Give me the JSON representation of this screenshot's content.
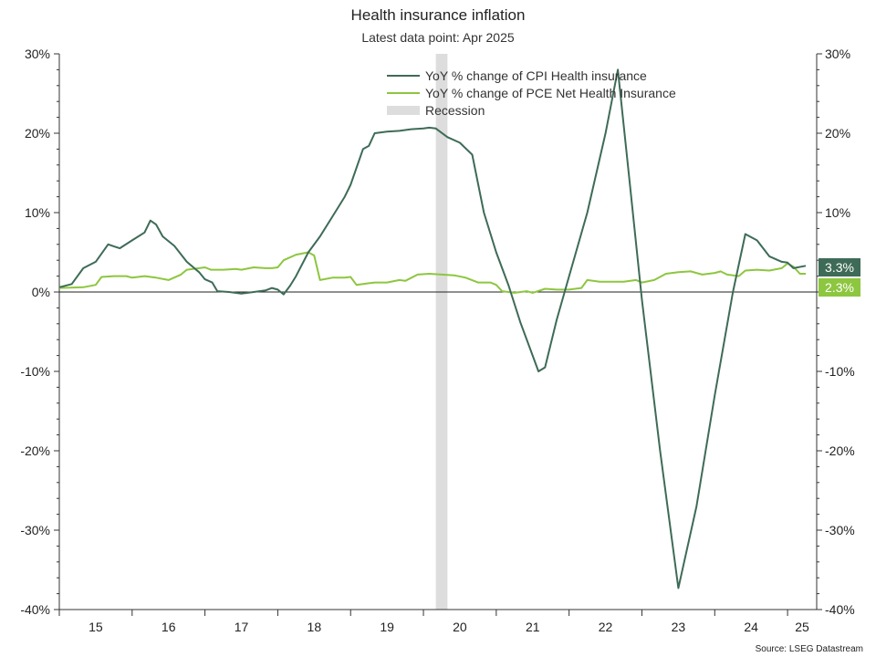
{
  "chart_data": {
    "type": "line",
    "title": "Health insurance inflation",
    "subtitle": "Latest data point: Apr 2025",
    "source": "Source: LSEG Datastream",
    "ylim": [
      -40,
      30
    ],
    "yticks": [
      30,
      20,
      10,
      0,
      -10,
      -20,
      -30,
      -40
    ],
    "ytick_labels": [
      "30%",
      "20%",
      "10%",
      "0%",
      "-10%",
      "-20%",
      "-30%",
      "-40%"
    ],
    "xlim": [
      2015.0,
      2025.4
    ],
    "x_year_labels": [
      "15",
      "16",
      "17",
      "18",
      "19",
      "20",
      "21",
      "22",
      "23",
      "24",
      "25"
    ],
    "grid": false,
    "legend_placement": "top-center",
    "recession": {
      "label": "Recession",
      "start": 2020.17,
      "end": 2020.33,
      "color": "#dddddd"
    },
    "series": [
      {
        "name": "YoY % change of CPI Health insurance",
        "color": "#3e6b57",
        "last_label": "3.3%",
        "points": [
          [
            2015.0,
            0.6
          ],
          [
            2015.17,
            1.0
          ],
          [
            2015.33,
            3.0
          ],
          [
            2015.5,
            3.8
          ],
          [
            2015.67,
            6.0
          ],
          [
            2015.83,
            5.5
          ],
          [
            2016.0,
            6.5
          ],
          [
            2016.17,
            7.5
          ],
          [
            2016.25,
            9.0
          ],
          [
            2016.33,
            8.5
          ],
          [
            2016.42,
            7.0
          ],
          [
            2016.58,
            5.8
          ],
          [
            2016.75,
            3.8
          ],
          [
            2016.92,
            2.5
          ],
          [
            2017.0,
            1.6
          ],
          [
            2017.1,
            1.2
          ],
          [
            2017.17,
            0.1
          ],
          [
            2017.33,
            0.0
          ],
          [
            2017.5,
            -0.2
          ],
          [
            2017.67,
            0.0
          ],
          [
            2017.83,
            0.2
          ],
          [
            2017.92,
            0.5
          ],
          [
            2018.0,
            0.3
          ],
          [
            2018.08,
            -0.3
          ],
          [
            2018.17,
            0.8
          ],
          [
            2018.25,
            2.0
          ],
          [
            2018.42,
            5.0
          ],
          [
            2018.58,
            7.0
          ],
          [
            2018.75,
            9.5
          ],
          [
            2018.92,
            12.0
          ],
          [
            2019.0,
            13.5
          ],
          [
            2019.17,
            18.0
          ],
          [
            2019.25,
            18.4
          ],
          [
            2019.33,
            20.0
          ],
          [
            2019.5,
            20.2
          ],
          [
            2019.67,
            20.3
          ],
          [
            2019.83,
            20.5
          ],
          [
            2020.0,
            20.6
          ],
          [
            2020.08,
            20.7
          ],
          [
            2020.17,
            20.6
          ],
          [
            2020.33,
            19.5
          ],
          [
            2020.5,
            18.8
          ],
          [
            2020.67,
            17.3
          ],
          [
            2020.83,
            10.0
          ],
          [
            2021.0,
            5.0
          ],
          [
            2021.17,
            0.8
          ],
          [
            2021.33,
            -3.8
          ],
          [
            2021.5,
            -8.0
          ],
          [
            2021.58,
            -10.0
          ],
          [
            2021.67,
            -9.5
          ],
          [
            2021.83,
            -3.5
          ],
          [
            2022.0,
            2.0
          ],
          [
            2022.25,
            10.0
          ],
          [
            2022.5,
            20.0
          ],
          [
            2022.67,
            28.0
          ],
          [
            2022.83,
            14.0
          ],
          [
            2023.0,
            -1.0
          ],
          [
            2023.25,
            -20.0
          ],
          [
            2023.5,
            -37.3
          ],
          [
            2023.75,
            -27.0
          ],
          [
            2024.0,
            -13.0
          ],
          [
            2024.25,
            0.0
          ],
          [
            2024.42,
            7.3
          ],
          [
            2024.58,
            6.5
          ],
          [
            2024.75,
            4.5
          ],
          [
            2024.92,
            3.8
          ],
          [
            2025.0,
            3.7
          ],
          [
            2025.08,
            3.0
          ],
          [
            2025.25,
            3.3
          ]
        ]
      },
      {
        "name": "YoY % change of PCE  Net Health Insurance",
        "color": "#8dc63f",
        "last_label": "2.3%",
        "points": [
          [
            2015.0,
            0.5
          ],
          [
            2015.33,
            0.6
          ],
          [
            2015.5,
            0.9
          ],
          [
            2015.58,
            1.9
          ],
          [
            2015.75,
            2.0
          ],
          [
            2015.92,
            2.0
          ],
          [
            2016.0,
            1.8
          ],
          [
            2016.17,
            2.0
          ],
          [
            2016.33,
            1.8
          ],
          [
            2016.5,
            1.5
          ],
          [
            2016.67,
            2.2
          ],
          [
            2016.75,
            2.8
          ],
          [
            2016.92,
            3.0
          ],
          [
            2017.0,
            3.1
          ],
          [
            2017.08,
            2.8
          ],
          [
            2017.25,
            2.8
          ],
          [
            2017.42,
            2.9
          ],
          [
            2017.5,
            2.8
          ],
          [
            2017.67,
            3.1
          ],
          [
            2017.83,
            3.0
          ],
          [
            2017.92,
            3.0
          ],
          [
            2018.0,
            3.1
          ],
          [
            2018.08,
            4.0
          ],
          [
            2018.25,
            4.7
          ],
          [
            2018.42,
            5.0
          ],
          [
            2018.5,
            4.6
          ],
          [
            2018.58,
            1.5
          ],
          [
            2018.75,
            1.8
          ],
          [
            2018.92,
            1.8
          ],
          [
            2019.0,
            1.9
          ],
          [
            2019.08,
            0.9
          ],
          [
            2019.25,
            1.1
          ],
          [
            2019.33,
            1.2
          ],
          [
            2019.5,
            1.2
          ],
          [
            2019.67,
            1.5
          ],
          [
            2019.75,
            1.4
          ],
          [
            2019.92,
            2.2
          ],
          [
            2020.08,
            2.3
          ],
          [
            2020.25,
            2.2
          ],
          [
            2020.42,
            2.1
          ],
          [
            2020.58,
            1.8
          ],
          [
            2020.75,
            1.2
          ],
          [
            2020.92,
            1.2
          ],
          [
            2021.0,
            0.9
          ],
          [
            2021.08,
            0.1
          ],
          [
            2021.25,
            -0.1
          ],
          [
            2021.42,
            0.1
          ],
          [
            2021.5,
            -0.1
          ],
          [
            2021.67,
            0.4
          ],
          [
            2021.83,
            0.3
          ],
          [
            2022.0,
            0.3
          ],
          [
            2022.17,
            0.5
          ],
          [
            2022.25,
            1.5
          ],
          [
            2022.42,
            1.3
          ],
          [
            2022.58,
            1.3
          ],
          [
            2022.75,
            1.3
          ],
          [
            2022.92,
            1.5
          ],
          [
            2023.0,
            1.2
          ],
          [
            2023.17,
            1.5
          ],
          [
            2023.33,
            2.3
          ],
          [
            2023.5,
            2.5
          ],
          [
            2023.67,
            2.6
          ],
          [
            2023.83,
            2.2
          ],
          [
            2024.0,
            2.4
          ],
          [
            2024.08,
            2.6
          ],
          [
            2024.17,
            2.2
          ],
          [
            2024.33,
            2.0
          ],
          [
            2024.42,
            2.7
          ],
          [
            2024.58,
            2.8
          ],
          [
            2024.75,
            2.7
          ],
          [
            2024.92,
            3.0
          ],
          [
            2025.0,
            3.6
          ],
          [
            2025.08,
            3.2
          ],
          [
            2025.17,
            2.3
          ],
          [
            2025.25,
            2.3
          ]
        ]
      }
    ]
  }
}
